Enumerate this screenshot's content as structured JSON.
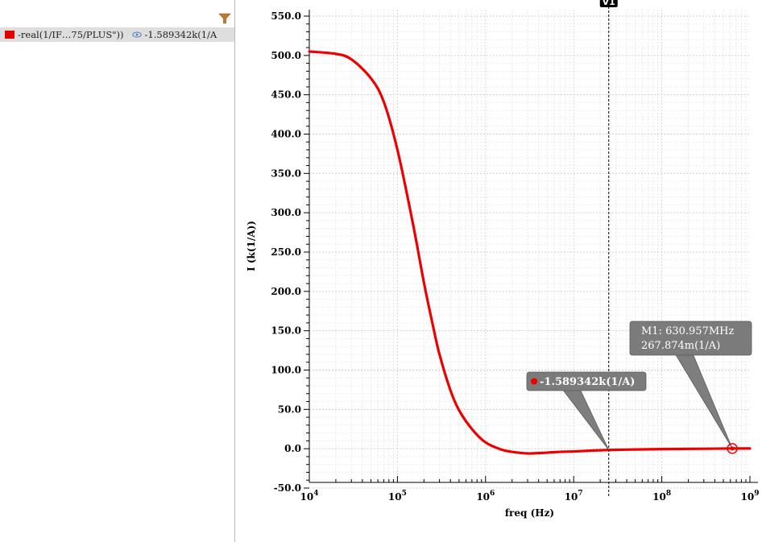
{
  "legend": {
    "trace_name": "-real(1/IF…75/PLUS\"))",
    "trace_value": "-1.589342k(1/A",
    "trace_color": "#e00000",
    "filter_icon": "filter-funnel-icon",
    "visibility_icon": "eye-icon"
  },
  "chart_data": {
    "type": "line",
    "title": "",
    "xlabel": "freq (Hz)",
    "ylabel": "I (k(1/A))",
    "xscale": "log",
    "xlim": [
      10000,
      1000000000
    ],
    "ylim": [
      -50,
      550
    ],
    "grid": true,
    "legend_position": "left-pane",
    "x_tick_labels": [
      {
        "base": "10",
        "exp": "4"
      },
      {
        "base": "10",
        "exp": "5"
      },
      {
        "base": "10",
        "exp": "6"
      },
      {
        "base": "10",
        "exp": "7"
      },
      {
        "base": "10",
        "exp": "8"
      },
      {
        "base": "10",
        "exp": "9"
      }
    ],
    "y_tick_labels": [
      "-50.0",
      "0.0",
      "50.0",
      "100.0",
      "150.0",
      "200.0",
      "250.0",
      "300.0",
      "350.0",
      "400.0",
      "450.0",
      "500.0",
      "550.0"
    ],
    "series": [
      {
        "color": "#ee0000",
        "x": [
          10000,
          20000,
          30000,
          50000,
          70000,
          100000,
          150000,
          200000,
          250000,
          300000,
          400000,
          500000,
          700000,
          1000000,
          1500000,
          2000000,
          3000000,
          5000000,
          7000000,
          10000000,
          15000000,
          25000000,
          50000000,
          100000000,
          300000000,
          630957000,
          1000000000
        ],
        "y": [
          505,
          502,
          495,
          471,
          441,
          380,
          286,
          211,
          159,
          120,
          74,
          49,
          25,
          8,
          -1,
          -4,
          -6,
          -5,
          -4,
          -3.5,
          -2.5,
          -1.6,
          -1,
          -0.5,
          0,
          0.27,
          0.3
        ]
      }
    ],
    "vertical_marker": {
      "label": "V1",
      "x": 25000000
    },
    "annotations": [
      {
        "name": "cursor-value",
        "x": 25000000,
        "y": -1.589,
        "lines": [
          "-1.589342k(1/A)"
        ],
        "bold": true
      },
      {
        "name": "marker-m1",
        "x": 630957000,
        "y": 0.27,
        "lines": [
          "M1: 630.957MHz",
          "267.874m(1/A)"
        ],
        "bold": false
      }
    ]
  }
}
